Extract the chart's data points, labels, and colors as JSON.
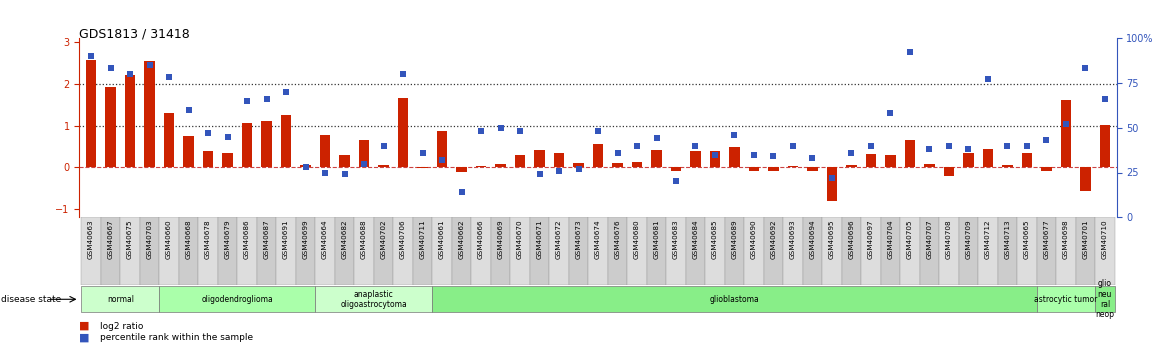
{
  "title": "GDS1813 / 31418",
  "samples": [
    "GSM40663",
    "GSM40667",
    "GSM40675",
    "GSM40703",
    "GSM40660",
    "GSM40668",
    "GSM40678",
    "GSM40679",
    "GSM40686",
    "GSM40687",
    "GSM40691",
    "GSM40699",
    "GSM40664",
    "GSM40682",
    "GSM40688",
    "GSM40702",
    "GSM40706",
    "GSM40711",
    "GSM40661",
    "GSM40662",
    "GSM40666",
    "GSM40669",
    "GSM40670",
    "GSM40671",
    "GSM40672",
    "GSM40673",
    "GSM40674",
    "GSM40676",
    "GSM40680",
    "GSM40681",
    "GSM40683",
    "GSM40684",
    "GSM40685",
    "GSM40689",
    "GSM40690",
    "GSM40692",
    "GSM40693",
    "GSM40694",
    "GSM40695",
    "GSM40696",
    "GSM40697",
    "GSM40704",
    "GSM40705",
    "GSM40707",
    "GSM40708",
    "GSM40709",
    "GSM40712",
    "GSM40713",
    "GSM40665",
    "GSM40677",
    "GSM40698",
    "GSM40701",
    "GSM40710"
  ],
  "log2_ratio": [
    2.58,
    1.92,
    2.2,
    2.55,
    1.3,
    0.75,
    0.38,
    0.35,
    1.05,
    1.1,
    1.25,
    0.05,
    0.78,
    0.3,
    0.65,
    0.05,
    1.65,
    -0.02,
    0.88,
    -0.12,
    0.02,
    0.08,
    0.3,
    0.42,
    0.35,
    0.1,
    0.55,
    0.1,
    0.12,
    0.42,
    -0.08,
    0.4,
    0.38,
    0.48,
    -0.08,
    -0.1,
    0.02,
    -0.08,
    -0.8,
    0.05,
    0.32,
    0.3,
    0.65,
    0.08,
    -0.22,
    0.35,
    0.45,
    0.05,
    0.35,
    -0.08,
    1.62,
    -0.58,
    1.02
  ],
  "percentile": [
    90,
    83,
    80,
    85,
    78,
    60,
    47,
    45,
    65,
    66,
    70,
    28,
    25,
    24,
    30,
    40,
    80,
    36,
    32,
    14,
    48,
    50,
    48,
    24,
    26,
    27,
    48,
    36,
    40,
    44,
    20,
    40,
    35,
    46,
    35,
    34,
    40,
    33,
    22,
    36,
    40,
    58,
    92,
    38,
    40,
    38,
    77,
    40,
    40,
    43,
    52,
    83,
    66
  ],
  "disease_groups": [
    {
      "label": "normal",
      "start": 0,
      "end": 4,
      "color": "#ccffcc"
    },
    {
      "label": "oligodendroglioma",
      "start": 4,
      "end": 12,
      "color": "#aaffaa"
    },
    {
      "label": "anaplastic\noligoastrocytoma",
      "start": 12,
      "end": 18,
      "color": "#ccffcc"
    },
    {
      "label": "glioblastoma",
      "start": 18,
      "end": 49,
      "color": "#88ee88"
    },
    {
      "label": "astrocytic tumor",
      "start": 49,
      "end": 52,
      "color": "#aaffaa"
    },
    {
      "label": "glio\nneu\nral\nneop",
      "start": 52,
      "end": 53,
      "color": "#88ee88"
    }
  ],
  "bar_color": "#cc2200",
  "dot_color": "#3355bb",
  "zero_line_color": "#cc4444",
  "dotted_line_color": "#333333",
  "ylim_left": [
    -1.2,
    3.1
  ],
  "ylim_right": [
    0,
    100
  ],
  "yticks_left": [
    -1,
    0,
    1,
    2,
    3
  ],
  "yticks_right": [
    0,
    25,
    50,
    75,
    100
  ],
  "background_color": "#ffffff"
}
